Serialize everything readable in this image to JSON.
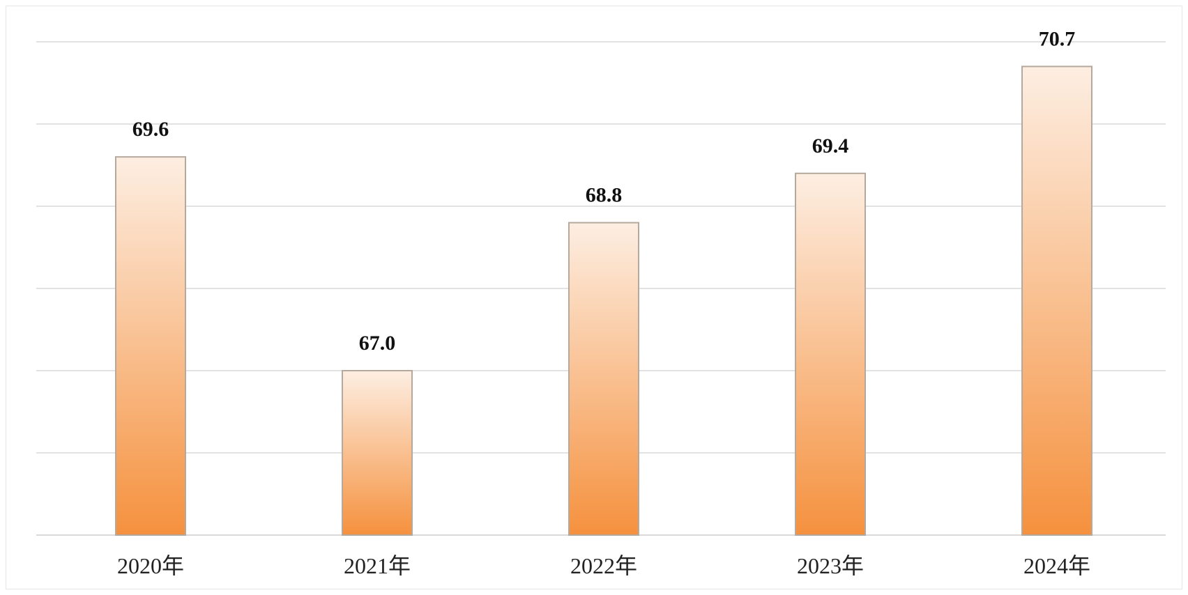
{
  "chart_data": {
    "type": "bar",
    "title": "",
    "xlabel": "",
    "ylabel": "",
    "categories": [
      "2020年",
      "2021年",
      "2022年",
      "2023年",
      "2024年"
    ],
    "values": [
      69.6,
      67.0,
      68.8,
      69.4,
      70.7
    ],
    "value_labels": [
      "69.6",
      "67.0",
      "68.8",
      "69.4",
      "70.7"
    ],
    "ylim": [
      65,
      71
    ],
    "gridlines": [
      65,
      66,
      67,
      68,
      69,
      70,
      71
    ],
    "grid": true,
    "legend": "none",
    "colors": {
      "bar_top": "#fdeee2",
      "bar_bottom": "#f5913e",
      "bar_border": "#b5a89c",
      "grid": "#d9d9d9"
    }
  }
}
